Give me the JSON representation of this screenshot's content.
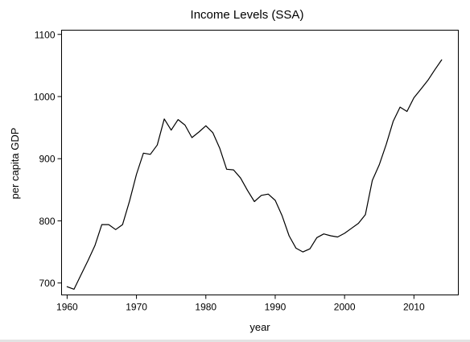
{
  "chart_data": {
    "type": "line",
    "title": "Income Levels (SSA)",
    "xlabel": "year",
    "ylabel": "per capita GDP",
    "xlim": [
      1959.2,
      2016.4
    ],
    "ylim": [
      680.8,
      1106.8
    ],
    "x_ticks": [
      1960,
      1970,
      1980,
      1990,
      2000,
      2010
    ],
    "y_ticks": [
      700,
      800,
      900,
      1000,
      1100
    ],
    "grid": false,
    "legend": "none",
    "line_color": "#000000",
    "series": [
      {
        "x": [
          1960,
          1961,
          1962,
          1963,
          1964,
          1965,
          1966,
          1967,
          1968,
          1969,
          1970,
          1971,
          1972,
          1973,
          1974,
          1975,
          1976,
          1977,
          1978,
          1979,
          1980,
          1981,
          1982,
          1983,
          1984,
          1985,
          1986,
          1987,
          1988,
          1989,
          1990,
          1991,
          1992,
          1993,
          1994,
          1995,
          1996,
          1997,
          1998,
          1999,
          2000,
          2001,
          2002,
          2003,
          2004,
          2005,
          2006,
          2007,
          2008,
          2009,
          2010,
          2011,
          2012,
          2013,
          2014
        ],
        "values": [
          694,
          690,
          713,
          736,
          760,
          794,
          794,
          786,
          794,
          832,
          875,
          909,
          907,
          922,
          964,
          946,
          963,
          954,
          934,
          943,
          953,
          942,
          917,
          883,
          882,
          869,
          849,
          831,
          841,
          843,
          833,
          808,
          776,
          756,
          750,
          755,
          773,
          779,
          776,
          774,
          780,
          788,
          796,
          810,
          865,
          890,
          923,
          960,
          983,
          976,
          998,
          1012,
          1026,
          1043,
          1059
        ]
      }
    ]
  }
}
